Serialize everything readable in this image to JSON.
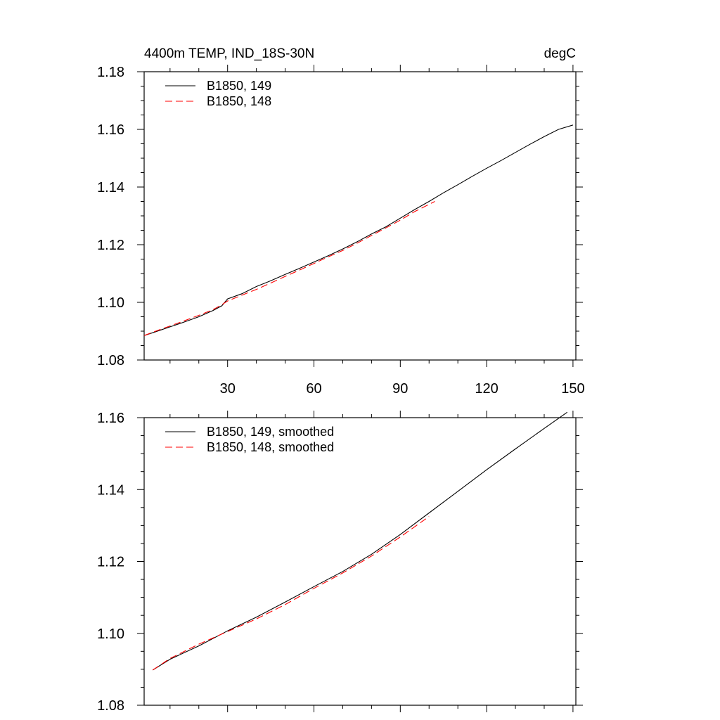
{
  "chart_data": [
    {
      "type": "line",
      "title": "4400m TEMP, IND_18S-30N",
      "units": "degC",
      "xlim": [
        1,
        151
      ],
      "ylim": [
        1.08,
        1.18
      ],
      "xticks": [
        30,
        60,
        90,
        120,
        150
      ],
      "xtick_labels": [
        "30",
        "60",
        "90",
        "120",
        "150"
      ],
      "yticks": [
        1.08,
        1.1,
        1.12,
        1.14,
        1.16,
        1.18
      ],
      "ytick_labels": [
        "1.08",
        "1.10",
        "1.12",
        "1.14",
        "1.16",
        "1.18"
      ],
      "legend_position": "top-left",
      "series": [
        {
          "name": "B1850, 149",
          "color": "#000000",
          "dash": "solid",
          "x": [
            1,
            5,
            10,
            15,
            20,
            25,
            28,
            30,
            35,
            40,
            45,
            50,
            55,
            60,
            65,
            70,
            75,
            80,
            85,
            90,
            95,
            100,
            105,
            110,
            115,
            120,
            125,
            130,
            135,
            140,
            145,
            150
          ],
          "y": [
            1.0885,
            1.0898,
            1.0915,
            1.0932,
            1.095,
            1.0972,
            1.0988,
            1.1012,
            1.103,
            1.1055,
            1.1075,
            1.1097,
            1.1118,
            1.114,
            1.1162,
            1.1185,
            1.121,
            1.1237,
            1.1262,
            1.1292,
            1.1322,
            1.135,
            1.138,
            1.1408,
            1.1437,
            1.1465,
            1.1492,
            1.152,
            1.1548,
            1.1575,
            1.16,
            1.1615
          ]
        },
        {
          "name": "B1850, 148",
          "color": "#ff0000",
          "dash": "dashed",
          "x": [
            1,
            5,
            10,
            15,
            20,
            25,
            28,
            30,
            35,
            40,
            45,
            50,
            55,
            60,
            65,
            70,
            75,
            80,
            85,
            90,
            95,
            100,
            102
          ],
          "y": [
            1.0885,
            1.09,
            1.0918,
            1.0936,
            1.0955,
            1.0975,
            1.0992,
            1.1005,
            1.1025,
            1.1045,
            1.1067,
            1.109,
            1.1112,
            1.1135,
            1.1158,
            1.118,
            1.1205,
            1.1232,
            1.1258,
            1.1285,
            1.1315,
            1.134,
            1.135
          ]
        }
      ]
    },
    {
      "type": "line",
      "title": "",
      "xlim": [
        1,
        151
      ],
      "ylim": [
        1.08,
        1.16
      ],
      "xticks": [
        30,
        60,
        90,
        120,
        150
      ],
      "yticks": [
        1.08,
        1.1,
        1.12,
        1.14,
        1.16
      ],
      "ytick_labels": [
        "1.08",
        "1.10",
        "1.12",
        "1.14",
        "1.16"
      ],
      "legend_position": "top-left",
      "series": [
        {
          "name": "B1850, 149, smoothed",
          "color": "#000000",
          "dash": "solid",
          "x": [
            4,
            10,
            20,
            30,
            40,
            50,
            60,
            70,
            80,
            90,
            100,
            110,
            120,
            130,
            140,
            148
          ],
          "y": [
            1.0898,
            1.0928,
            1.0965,
            1.1007,
            1.1045,
            1.1087,
            1.113,
            1.1172,
            1.122,
            1.1275,
            1.1335,
            1.1395,
            1.1455,
            1.1513,
            1.157,
            1.1615
          ]
        },
        {
          "name": "B1850, 148, smoothed",
          "color": "#ff0000",
          "dash": "dashed",
          "x": [
            4,
            10,
            20,
            30,
            40,
            50,
            60,
            70,
            80,
            90,
            100
          ],
          "y": [
            1.0898,
            1.093,
            1.097,
            1.1005,
            1.104,
            1.108,
            1.1125,
            1.1168,
            1.1215,
            1.1268,
            1.1325
          ]
        }
      ]
    }
  ]
}
